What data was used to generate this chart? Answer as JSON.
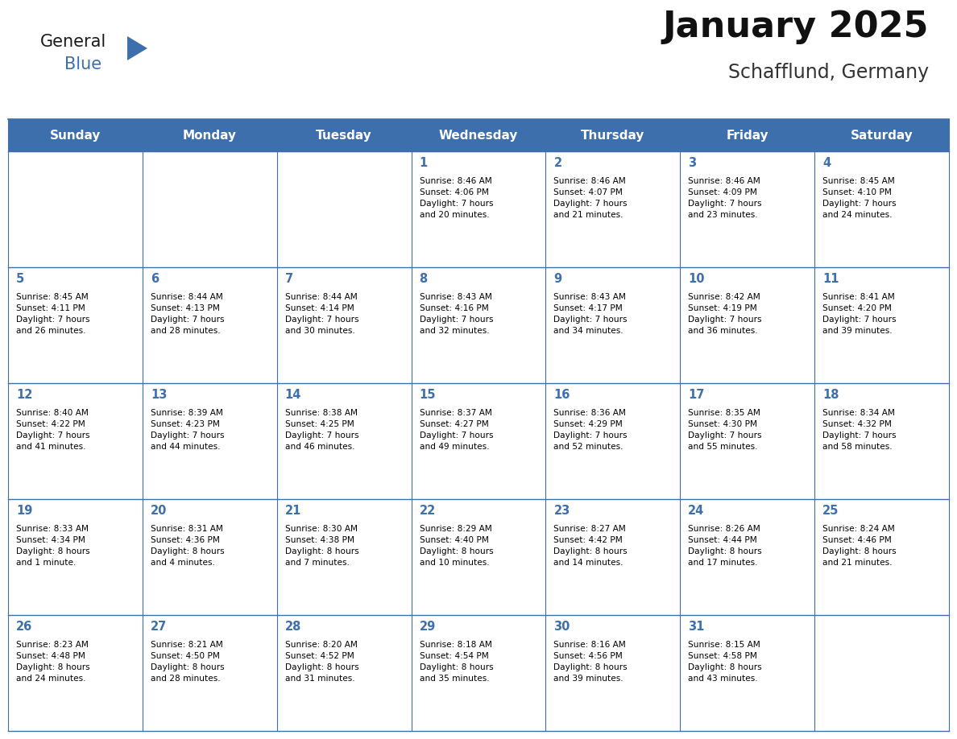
{
  "title": "January 2025",
  "subtitle": "Schafflund, Germany",
  "header_color": "#3d6fad",
  "header_text_color": "#FFFFFF",
  "days_of_week": [
    "Sunday",
    "Monday",
    "Tuesday",
    "Wednesday",
    "Thursday",
    "Friday",
    "Saturday"
  ],
  "background_color": "#FFFFFF",
  "cell_bg_color": "#FFFFFF",
  "cell_alt_bg_color": "#f5f5f5",
  "grid_color": "#3d6fad",
  "text_color": "#000000",
  "day_num_color": "#3d6fad",
  "logo_general_color": "#1a1a1a",
  "logo_blue_color": "#3d6fad",
  "logo_triangle_color": "#3d6fad",
  "weeks": [
    [
      {
        "day": null,
        "info": null
      },
      {
        "day": null,
        "info": null
      },
      {
        "day": null,
        "info": null
      },
      {
        "day": 1,
        "info": "Sunrise: 8:46 AM\nSunset: 4:06 PM\nDaylight: 7 hours\nand 20 minutes."
      },
      {
        "day": 2,
        "info": "Sunrise: 8:46 AM\nSunset: 4:07 PM\nDaylight: 7 hours\nand 21 minutes."
      },
      {
        "day": 3,
        "info": "Sunrise: 8:46 AM\nSunset: 4:09 PM\nDaylight: 7 hours\nand 23 minutes."
      },
      {
        "day": 4,
        "info": "Sunrise: 8:45 AM\nSunset: 4:10 PM\nDaylight: 7 hours\nand 24 minutes."
      }
    ],
    [
      {
        "day": 5,
        "info": "Sunrise: 8:45 AM\nSunset: 4:11 PM\nDaylight: 7 hours\nand 26 minutes."
      },
      {
        "day": 6,
        "info": "Sunrise: 8:44 AM\nSunset: 4:13 PM\nDaylight: 7 hours\nand 28 minutes."
      },
      {
        "day": 7,
        "info": "Sunrise: 8:44 AM\nSunset: 4:14 PM\nDaylight: 7 hours\nand 30 minutes."
      },
      {
        "day": 8,
        "info": "Sunrise: 8:43 AM\nSunset: 4:16 PM\nDaylight: 7 hours\nand 32 minutes."
      },
      {
        "day": 9,
        "info": "Sunrise: 8:43 AM\nSunset: 4:17 PM\nDaylight: 7 hours\nand 34 minutes."
      },
      {
        "day": 10,
        "info": "Sunrise: 8:42 AM\nSunset: 4:19 PM\nDaylight: 7 hours\nand 36 minutes."
      },
      {
        "day": 11,
        "info": "Sunrise: 8:41 AM\nSunset: 4:20 PM\nDaylight: 7 hours\nand 39 minutes."
      }
    ],
    [
      {
        "day": 12,
        "info": "Sunrise: 8:40 AM\nSunset: 4:22 PM\nDaylight: 7 hours\nand 41 minutes."
      },
      {
        "day": 13,
        "info": "Sunrise: 8:39 AM\nSunset: 4:23 PM\nDaylight: 7 hours\nand 44 minutes."
      },
      {
        "day": 14,
        "info": "Sunrise: 8:38 AM\nSunset: 4:25 PM\nDaylight: 7 hours\nand 46 minutes."
      },
      {
        "day": 15,
        "info": "Sunrise: 8:37 AM\nSunset: 4:27 PM\nDaylight: 7 hours\nand 49 minutes."
      },
      {
        "day": 16,
        "info": "Sunrise: 8:36 AM\nSunset: 4:29 PM\nDaylight: 7 hours\nand 52 minutes."
      },
      {
        "day": 17,
        "info": "Sunrise: 8:35 AM\nSunset: 4:30 PM\nDaylight: 7 hours\nand 55 minutes."
      },
      {
        "day": 18,
        "info": "Sunrise: 8:34 AM\nSunset: 4:32 PM\nDaylight: 7 hours\nand 58 minutes."
      }
    ],
    [
      {
        "day": 19,
        "info": "Sunrise: 8:33 AM\nSunset: 4:34 PM\nDaylight: 8 hours\nand 1 minute."
      },
      {
        "day": 20,
        "info": "Sunrise: 8:31 AM\nSunset: 4:36 PM\nDaylight: 8 hours\nand 4 minutes."
      },
      {
        "day": 21,
        "info": "Sunrise: 8:30 AM\nSunset: 4:38 PM\nDaylight: 8 hours\nand 7 minutes."
      },
      {
        "day": 22,
        "info": "Sunrise: 8:29 AM\nSunset: 4:40 PM\nDaylight: 8 hours\nand 10 minutes."
      },
      {
        "day": 23,
        "info": "Sunrise: 8:27 AM\nSunset: 4:42 PM\nDaylight: 8 hours\nand 14 minutes."
      },
      {
        "day": 24,
        "info": "Sunrise: 8:26 AM\nSunset: 4:44 PM\nDaylight: 8 hours\nand 17 minutes."
      },
      {
        "day": 25,
        "info": "Sunrise: 8:24 AM\nSunset: 4:46 PM\nDaylight: 8 hours\nand 21 minutes."
      }
    ],
    [
      {
        "day": 26,
        "info": "Sunrise: 8:23 AM\nSunset: 4:48 PM\nDaylight: 8 hours\nand 24 minutes."
      },
      {
        "day": 27,
        "info": "Sunrise: 8:21 AM\nSunset: 4:50 PM\nDaylight: 8 hours\nand 28 minutes."
      },
      {
        "day": 28,
        "info": "Sunrise: 8:20 AM\nSunset: 4:52 PM\nDaylight: 8 hours\nand 31 minutes."
      },
      {
        "day": 29,
        "info": "Sunrise: 8:18 AM\nSunset: 4:54 PM\nDaylight: 8 hours\nand 35 minutes."
      },
      {
        "day": 30,
        "info": "Sunrise: 8:16 AM\nSunset: 4:56 PM\nDaylight: 8 hours\nand 39 minutes."
      },
      {
        "day": 31,
        "info": "Sunrise: 8:15 AM\nSunset: 4:58 PM\nDaylight: 8 hours\nand 43 minutes."
      },
      {
        "day": null,
        "info": null
      }
    ]
  ]
}
